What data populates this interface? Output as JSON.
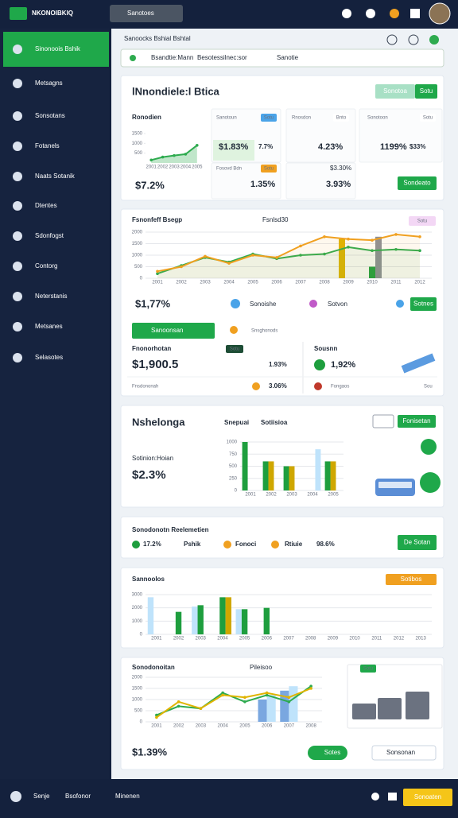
{
  "topbar": {
    "brand": "NKONOIBKIQ",
    "search": "Sanotoes"
  },
  "sidebar": [
    "Sinonoois Bshik",
    "Metsagns",
    "Sonsotans",
    "Fotanels",
    "Naats Sotanik",
    "Dtentes",
    "Sdonfogst",
    "Contorg",
    "Neterstanis",
    "Metsanes",
    "Selasotes"
  ],
  "header": {
    "title": "Sanoocks Bshial Bshtal",
    "filters": [
      "Bsandtie:Mann",
      "Besotessilnec:sor",
      "Sanotie"
    ]
  },
  "overview": {
    "title": "lNnondiele:l Btica",
    "buttons": [
      "Sonotoa",
      "Sotu"
    ],
    "panel_label": "Ronodien",
    "total": "$7.2%",
    "tiles": [
      {
        "label": "Sanotoun",
        "tag": "Sotu",
        "value": "$1.83%",
        "delta": "7.7%"
      },
      {
        "label": "Rnosdon",
        "tag": "Bnto",
        "value": "4.23%"
      },
      {
        "label": "Sonotoon",
        "tag": "Sotu",
        "value": "1199%",
        "delta": "$33%"
      },
      {
        "label": "Fosovd Bdn",
        "tag": "Sotu",
        "value": "1.35%"
      },
      {
        "label": "$3.30%",
        "value": "3.93%"
      }
    ],
    "action": "Sondeato"
  },
  "performance": {
    "tag": "Sotu",
    "total": "$1,77%",
    "stats": [
      "Sonoishe",
      "Sotvon"
    ],
    "action": "Sotnes",
    "tabs": [
      "Sanoonsan",
      "Snsghonods"
    ],
    "left": {
      "label": "Fnonorhotan",
      "tag": "Sotu",
      "value": "$1,900.5",
      "delta": "1.93%",
      "note": "Fnsdononah",
      "note_value": "3.06%"
    },
    "right": {
      "label": "Sousnn",
      "value": "1,92%",
      "note": "Fongaos",
      "link": "Sou"
    }
  },
  "summary": {
    "title": "Nshelonga",
    "label": "Sotinion:Hoian",
    "value": "$2.3%",
    "action": "Fonisetan"
  },
  "report": {
    "title": "Sonodonotn Reelemetien",
    "items": [
      "17.2%",
      "Pshik",
      "Fonoci",
      "Rtiuie",
      "98.6%"
    ],
    "action": "De Sotan"
  },
  "volume": {
    "tag": "Sotibos"
  },
  "trend": {
    "tag": "Sotu",
    "total": "$1.39%",
    "buttons": [
      "Sotes",
      "Sonsonan"
    ]
  },
  "footer": [
    "Senje",
    "Bsofonor",
    "Minenen",
    "Sonoaten"
  ],
  "chart_data": [
    {
      "type": "area",
      "categories": [
        "2001",
        "2002",
        "2003",
        "2004",
        "2005"
      ],
      "ylim": [
        0,
        1500
      ],
      "yticks": [
        500,
        1000,
        1500
      ],
      "grid": false,
      "series": [
        {
          "color": "#2eab4f",
          "values": [
            150,
            300,
            380,
            450,
            900
          ]
        }
      ]
    },
    {
      "type": "line",
      "title": "Fsnonfeff Bsegp",
      "subtitle": "Fsnlsd30",
      "categories": [
        "2001",
        "2002",
        "2003",
        "2004",
        "2005",
        "2006",
        "2007",
        "2008",
        "2009",
        "2010",
        "2011",
        "2012"
      ],
      "ylim": [
        0,
        2000
      ],
      "yticks": [
        0,
        500,
        1000,
        1500,
        2000
      ],
      "grid": true,
      "series": [
        {
          "type": "bar",
          "color": "#e0b400",
          "values": [
            null,
            null,
            null,
            null,
            null,
            null,
            null,
            null,
            1700,
            null,
            null,
            null
          ]
        },
        {
          "type": "bar",
          "color": "#1e9e3e",
          "values": [
            null,
            null,
            null,
            null,
            null,
            null,
            null,
            null,
            null,
            500,
            null,
            null
          ]
        },
        {
          "type": "bar",
          "color": "#8a8f99",
          "values": [
            null,
            null,
            null,
            null,
            null,
            null,
            null,
            null,
            null,
            1800,
            null,
            null
          ]
        },
        {
          "type": "line",
          "color": "#2eab4f",
          "values": [
            200,
            550,
            900,
            700,
            1050,
            850,
            1000,
            1050,
            1350,
            1200,
            1250,
            1200
          ]
        },
        {
          "type": "line",
          "color": "#f0a020",
          "values": [
            300,
            500,
            950,
            650,
            1000,
            900,
            1400,
            1800,
            1700,
            1650,
            1900,
            1800
          ]
        }
      ]
    },
    {
      "type": "bar",
      "title": "Snepuai",
      "subtitle": "Sotiisioa",
      "categories": [
        "2001",
        "2002",
        "2003",
        "2004",
        "2005"
      ],
      "ylim": [
        0,
        1000
      ],
      "yticks": [
        0,
        250,
        500,
        750,
        1000
      ],
      "grid": true,
      "series": [
        {
          "color": "#1e9e3e",
          "values": [
            1000,
            600,
            500,
            null,
            600
          ]
        },
        {
          "color": "#cfa700",
          "values": [
            null,
            600,
            500,
            null,
            600
          ]
        },
        {
          "color": "#bfe3fb",
          "values": [
            null,
            null,
            null,
            850,
            null
          ]
        }
      ]
    },
    {
      "type": "bar",
      "title": "Sannoolos",
      "categories": [
        "2001",
        "2002",
        "2003",
        "2004",
        "2005",
        "2006",
        "2007",
        "2008",
        "2009",
        "2010",
        "2011",
        "2012",
        "2013"
      ],
      "ylim": [
        0,
        3000
      ],
      "yticks": [
        0,
        1000,
        2000,
        3000
      ],
      "grid": true,
      "series": [
        {
          "color": "#bfe3fb",
          "values": [
            2800,
            null,
            2100,
            null,
            1900,
            null,
            null,
            null,
            null,
            null,
            null,
            null,
            null
          ]
        },
        {
          "color": "#1e9e3e",
          "values": [
            null,
            1700,
            2200,
            2800,
            1900,
            2000,
            null,
            null,
            null,
            null,
            null,
            null,
            null
          ]
        },
        {
          "color": "#cfa700",
          "values": [
            null,
            null,
            null,
            2800,
            null,
            null,
            null,
            null,
            null,
            null,
            null,
            null,
            null
          ]
        }
      ]
    },
    {
      "type": "line",
      "title": "Sonodonoitan",
      "subtitle": "Pileisoo",
      "categories": [
        "2001",
        "2002",
        "2003",
        "2004",
        "2005",
        "2006",
        "2007",
        "2008"
      ],
      "ylim": [
        0,
        2000
      ],
      "yticks": [
        0,
        500,
        1000,
        1500,
        2000
      ],
      "grid": true,
      "series": [
        {
          "type": "bar",
          "color": "#7aa7e0",
          "values": [
            null,
            null,
            null,
            null,
            null,
            1000,
            1400,
            null
          ]
        },
        {
          "type": "bar",
          "color": "#bfe3fb",
          "values": [
            null,
            null,
            null,
            null,
            null,
            1200,
            1600,
            null
          ]
        },
        {
          "type": "line",
          "color": "#2eab4f",
          "values": [
            300,
            700,
            600,
            1300,
            900,
            1200,
            900,
            1600
          ]
        },
        {
          "type": "line",
          "color": "#e0b400",
          "values": [
            200,
            900,
            600,
            1200,
            1100,
            1300,
            1100,
            1500
          ]
        }
      ]
    }
  ]
}
